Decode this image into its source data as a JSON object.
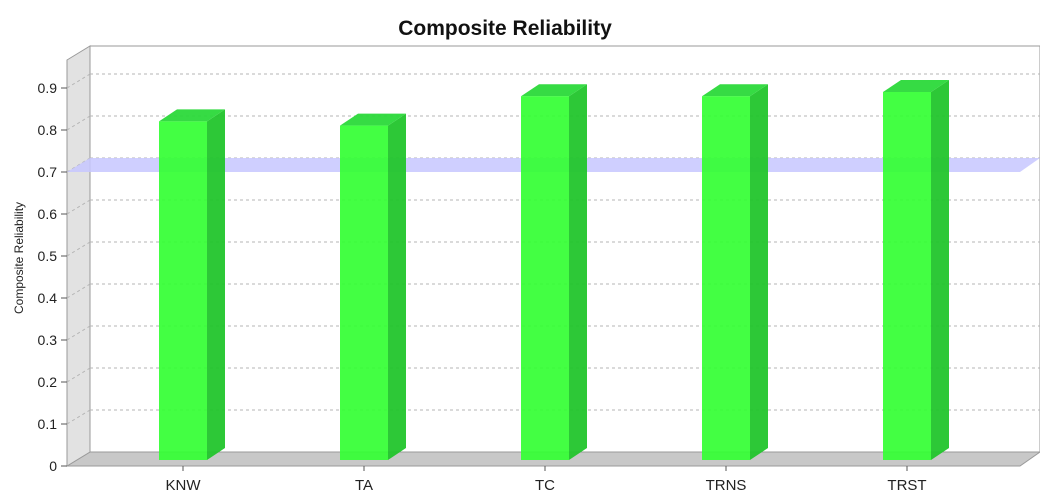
{
  "chart_data": {
    "type": "bar",
    "title": "Composite Reliability",
    "xlabel": "",
    "ylabel": "Composite Reliability",
    "categories": [
      "KNW",
      "TA",
      "TC",
      "TRNS",
      "TRST"
    ],
    "values": [
      0.83,
      0.82,
      0.89,
      0.89,
      0.9
    ],
    "ylim": [
      0,
      0.95
    ],
    "yticks": [
      "0",
      "0.1",
      "0.2",
      "0.3",
      "0.4",
      "0.5",
      "0.6",
      "0.7",
      "0.8",
      "0.9"
    ],
    "threshold": 0.7,
    "grid": true,
    "style": "3d",
    "colors": {
      "bar_front": "#33ff33",
      "bar_side": "#22c52c",
      "bar_top": "#2bd93a",
      "threshold_band": "#c7c7ff",
      "gridline": "#b5b5b5",
      "wall": "#e2e2e2",
      "floor": "#c8c8c8"
    }
  }
}
